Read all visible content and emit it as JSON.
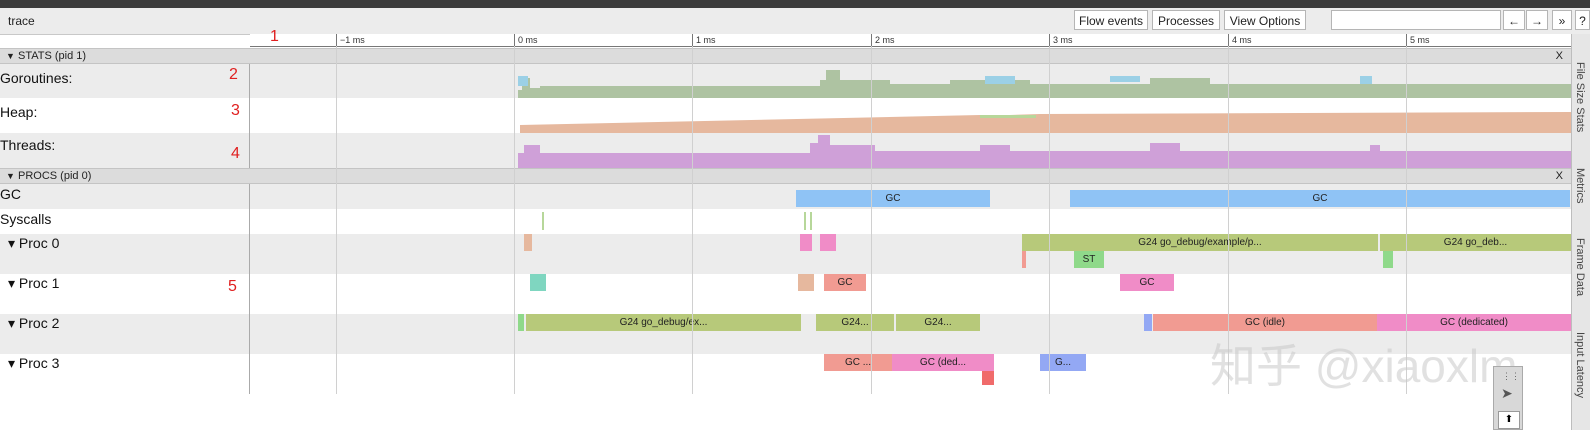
{
  "app": {
    "title": "trace"
  },
  "toolbar": {
    "flow_events": "Flow events",
    "processes": "Processes",
    "view_options": "View Options",
    "search_value": "",
    "nav_prev": "←",
    "nav_next": "→",
    "more": "»",
    "help": "?"
  },
  "ruler": {
    "labels": [
      "−1 ms",
      "0 ms",
      "1 ms",
      "2 ms",
      "3 ms",
      "4 ms",
      "5 ms"
    ]
  },
  "annotations": [
    "1",
    "2",
    "3",
    "4",
    "5"
  ],
  "stats": {
    "header": "STATS (pid 1)",
    "close": "X",
    "rows": [
      "Goroutines:",
      "Heap:",
      "Threads:"
    ]
  },
  "procs": {
    "header": "PROCS (pid 0)",
    "close": "X",
    "rows": [
      "GC",
      "Syscalls",
      "Proc 0",
      "Proc 1",
      "Proc 2",
      "Proc 3"
    ]
  },
  "slices": {
    "gc1": "GC",
    "gc2": "GC",
    "p0_a": "G24 go_debug/example/p...",
    "p0_b": "G24 go_deb...",
    "p0_st": "ST",
    "p1_gc1": "GC",
    "p1_gc2": "GC",
    "p2_a": "G24 go_debug/ex...",
    "p2_b": "G24...",
    "p2_c": "G24...",
    "p2_idle": "GC (idle)",
    "p2_ded": "GC (dedicated)",
    "p3_gc": "GC ...",
    "p3_ded": "GC (ded...",
    "p3_g": "G..."
  },
  "side_tabs": [
    "File Size Stats",
    "Metrics",
    "Frame Data",
    "Input Latency"
  ],
  "watermark": "知乎 @xiaoxlm",
  "colors": {
    "goroutines": "#aec3a2",
    "goroutines_runnable": "#9bd0e6",
    "heap": "#e6b89e",
    "threads": "#cfa0d8",
    "gc": "#8fc3f5",
    "running": "#b7c97a",
    "gc_salmon": "#f19b92",
    "gc_pink": "#f08cc7",
    "stw": "#8fd98a",
    "teal": "#7fd6c0",
    "blue": "#93a8f4",
    "annotation": "#e02020"
  }
}
